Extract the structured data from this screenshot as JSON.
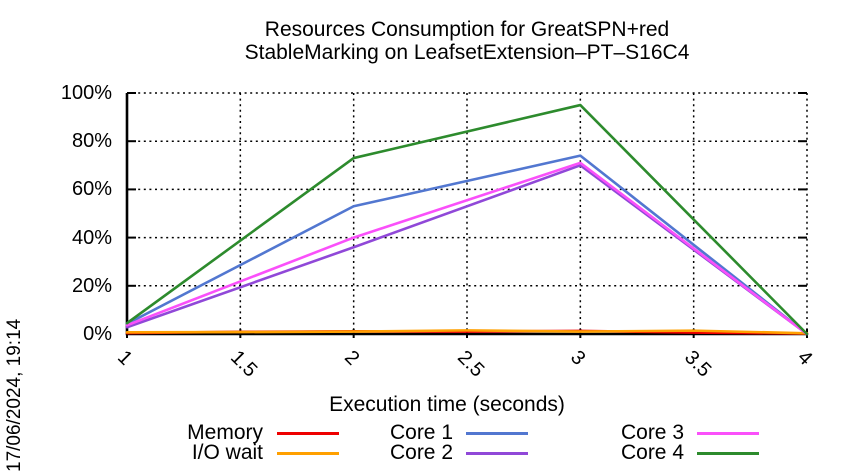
{
  "page": {
    "background": "#ffffff"
  },
  "title": {
    "line1": "Resources Consumption for GreatSPN+red",
    "line2": "StableMarking on LeafsetExtension–PT–S16C4"
  },
  "timestamp": "17/06/2024, 19:14",
  "chart_data": {
    "type": "line",
    "title": "Resources Consumption for GreatSPN+red StableMarking on LeafsetExtension–PT–S16C4",
    "xlabel": "Execution time (seconds)",
    "ylabel": "",
    "xlim": [
      1,
      4
    ],
    "ylim": [
      0,
      100
    ],
    "grid": true,
    "legend_position": "bottom",
    "axis_color": "#000000",
    "x_ticks": [
      {
        "v": 1,
        "label": "1"
      },
      {
        "v": 1.5,
        "label": "1.5"
      },
      {
        "v": 2,
        "label": "2"
      },
      {
        "v": 2.5,
        "label": "2.5"
      },
      {
        "v": 3,
        "label": "3"
      },
      {
        "v": 3.5,
        "label": "3.5"
      },
      {
        "v": 4,
        "label": "4"
      }
    ],
    "y_ticks": [
      {
        "v": 0,
        "label": "0%"
      },
      {
        "v": 20,
        "label": "20%"
      },
      {
        "v": 40,
        "label": "40%"
      },
      {
        "v": 60,
        "label": "60%"
      },
      {
        "v": 80,
        "label": "80%"
      },
      {
        "v": 100,
        "label": "100%"
      }
    ],
    "series": [
      {
        "key": "memory",
        "name": "Memory",
        "color": "#ee0000",
        "points": [
          [
            1,
            0.4
          ],
          [
            1.5,
            0.9
          ],
          [
            2,
            1.1
          ],
          [
            2.5,
            1.0
          ],
          [
            3,
            1.3
          ],
          [
            3.5,
            0.6
          ],
          [
            4,
            0.2
          ]
        ]
      },
      {
        "key": "io_wait",
        "name": "I/O wait",
        "color": "#ffa000",
        "points": [
          [
            1,
            0.7
          ],
          [
            1.5,
            0.8
          ],
          [
            2,
            1.0
          ],
          [
            2.5,
            1.5
          ],
          [
            3,
            1.0
          ],
          [
            3.5,
            1.4
          ],
          [
            4,
            0.3
          ]
        ]
      },
      {
        "key": "core1",
        "name": "Core 1",
        "color": "#5277d0",
        "points": [
          [
            1,
            4.2
          ],
          [
            2,
            53
          ],
          [
            3,
            74
          ],
          [
            4,
            0
          ]
        ]
      },
      {
        "key": "core2",
        "name": "Core 2",
        "color": "#9048d8",
        "points": [
          [
            1,
            2.8
          ],
          [
            2,
            36
          ],
          [
            3,
            70
          ],
          [
            4,
            0
          ]
        ]
      },
      {
        "key": "core3",
        "name": "Core 3",
        "color": "#fa50fa",
        "points": [
          [
            1,
            3.6
          ],
          [
            2,
            40
          ],
          [
            3,
            71
          ],
          [
            4,
            0
          ]
        ]
      },
      {
        "key": "core4",
        "name": "Core 4",
        "color": "#2d8b2d",
        "points": [
          [
            1,
            4.5
          ],
          [
            2,
            73
          ],
          [
            3,
            95
          ],
          [
            4,
            0
          ]
        ]
      }
    ],
    "legend": {
      "items": [
        {
          "series": "memory"
        },
        {
          "series": "io_wait"
        },
        {
          "series": "core1"
        },
        {
          "series": "core2"
        },
        {
          "series": "core3"
        },
        {
          "series": "core4"
        }
      ]
    }
  }
}
